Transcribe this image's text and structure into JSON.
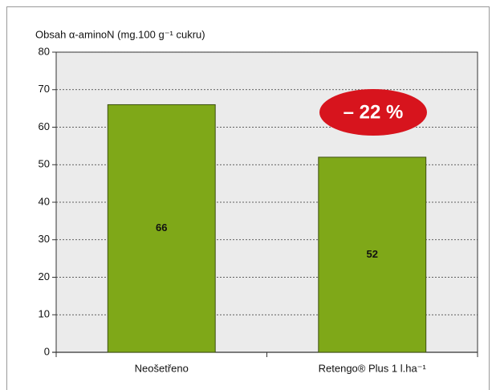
{
  "chart_data": {
    "type": "bar",
    "y_label": "Obsah α-aminoN (mg.100 g⁻¹ cukru)",
    "categories": [
      "Neošetřeno",
      "Retengo® Plus 1 l.ha⁻¹"
    ],
    "values": [
      66,
      52
    ],
    "color": "#7fa818",
    "ylim": [
      0,
      80
    ],
    "yticks": [
      0,
      10,
      20,
      30,
      40,
      50,
      60,
      70,
      80
    ],
    "grid": true,
    "annotation": "– 22 %",
    "annotation_color": "#d7141d"
  }
}
